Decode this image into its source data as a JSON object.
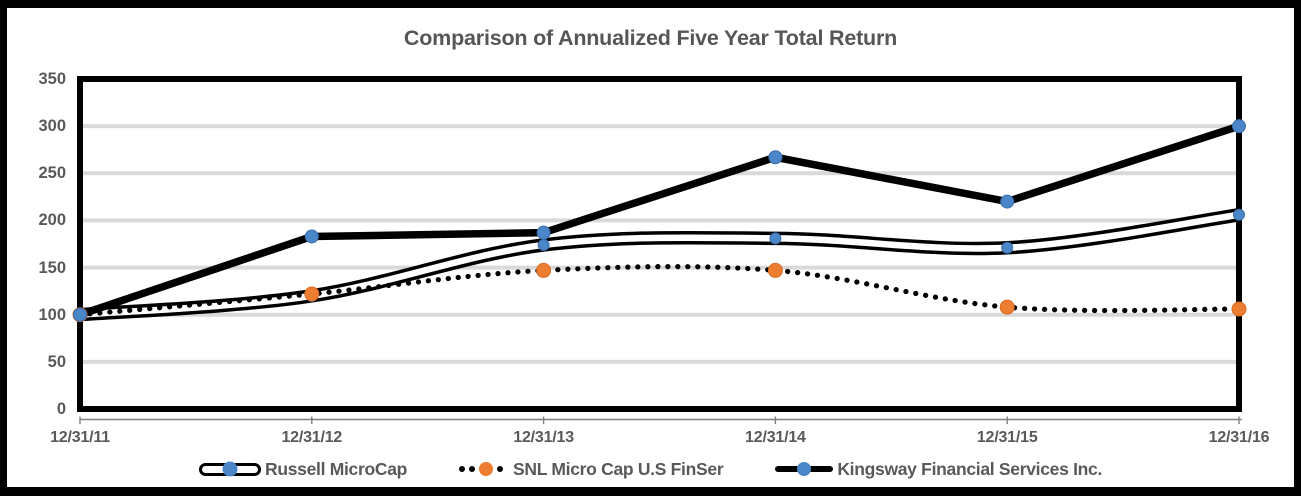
{
  "page": {
    "background": "#FFFFFF",
    "border_color": "#000000"
  },
  "colors": {
    "blue_marker": "#4A86C8",
    "blue_marker_edge": "#3A6FAD",
    "orange_marker": "#ED7D31",
    "orange_marker_edge": "#D86B22",
    "line_black": "#000000",
    "gridline_gray": "#D9D9D9",
    "label_gray": "#595959",
    "axis_line_gray": "#808080"
  },
  "chart_data": {
    "type": "line",
    "title": "Comparison of Annualized Five Year Total Return",
    "x_labels": [
      "12/31/11",
      "12/31/12",
      "12/31/13",
      "12/31/14",
      "12/31/15",
      "12/31/16"
    ],
    "y_ticks": [
      0,
      50,
      100,
      150,
      200,
      250,
      300,
      350
    ],
    "ylim": [
      0,
      350
    ],
    "grid": "horizontal-gray",
    "legend_position": "bottom",
    "series": [
      {
        "name": "Russell MicroCap",
        "line_style": "double-outline",
        "line_color": "#000000",
        "marker": "circle",
        "marker_color": "#4A86C8",
        "smoothed": true,
        "values": [
          100,
          120,
          174,
          181,
          171,
          206
        ]
      },
      {
        "name": "SNL Micro Cap U.S FinSer",
        "line_style": "dotted",
        "line_color": "#000000",
        "marker": "circle",
        "marker_color": "#ED7D31",
        "smoothed": true,
        "values": [
          100,
          122,
          147,
          147,
          108,
          106
        ]
      },
      {
        "name": "Kingsway Financial Services Inc.",
        "line_style": "thick-solid",
        "line_color": "#000000",
        "marker": "circle",
        "marker_color": "#4A86C8",
        "smoothed": false,
        "values": [
          100,
          183,
          187,
          267,
          220,
          300
        ]
      }
    ]
  }
}
